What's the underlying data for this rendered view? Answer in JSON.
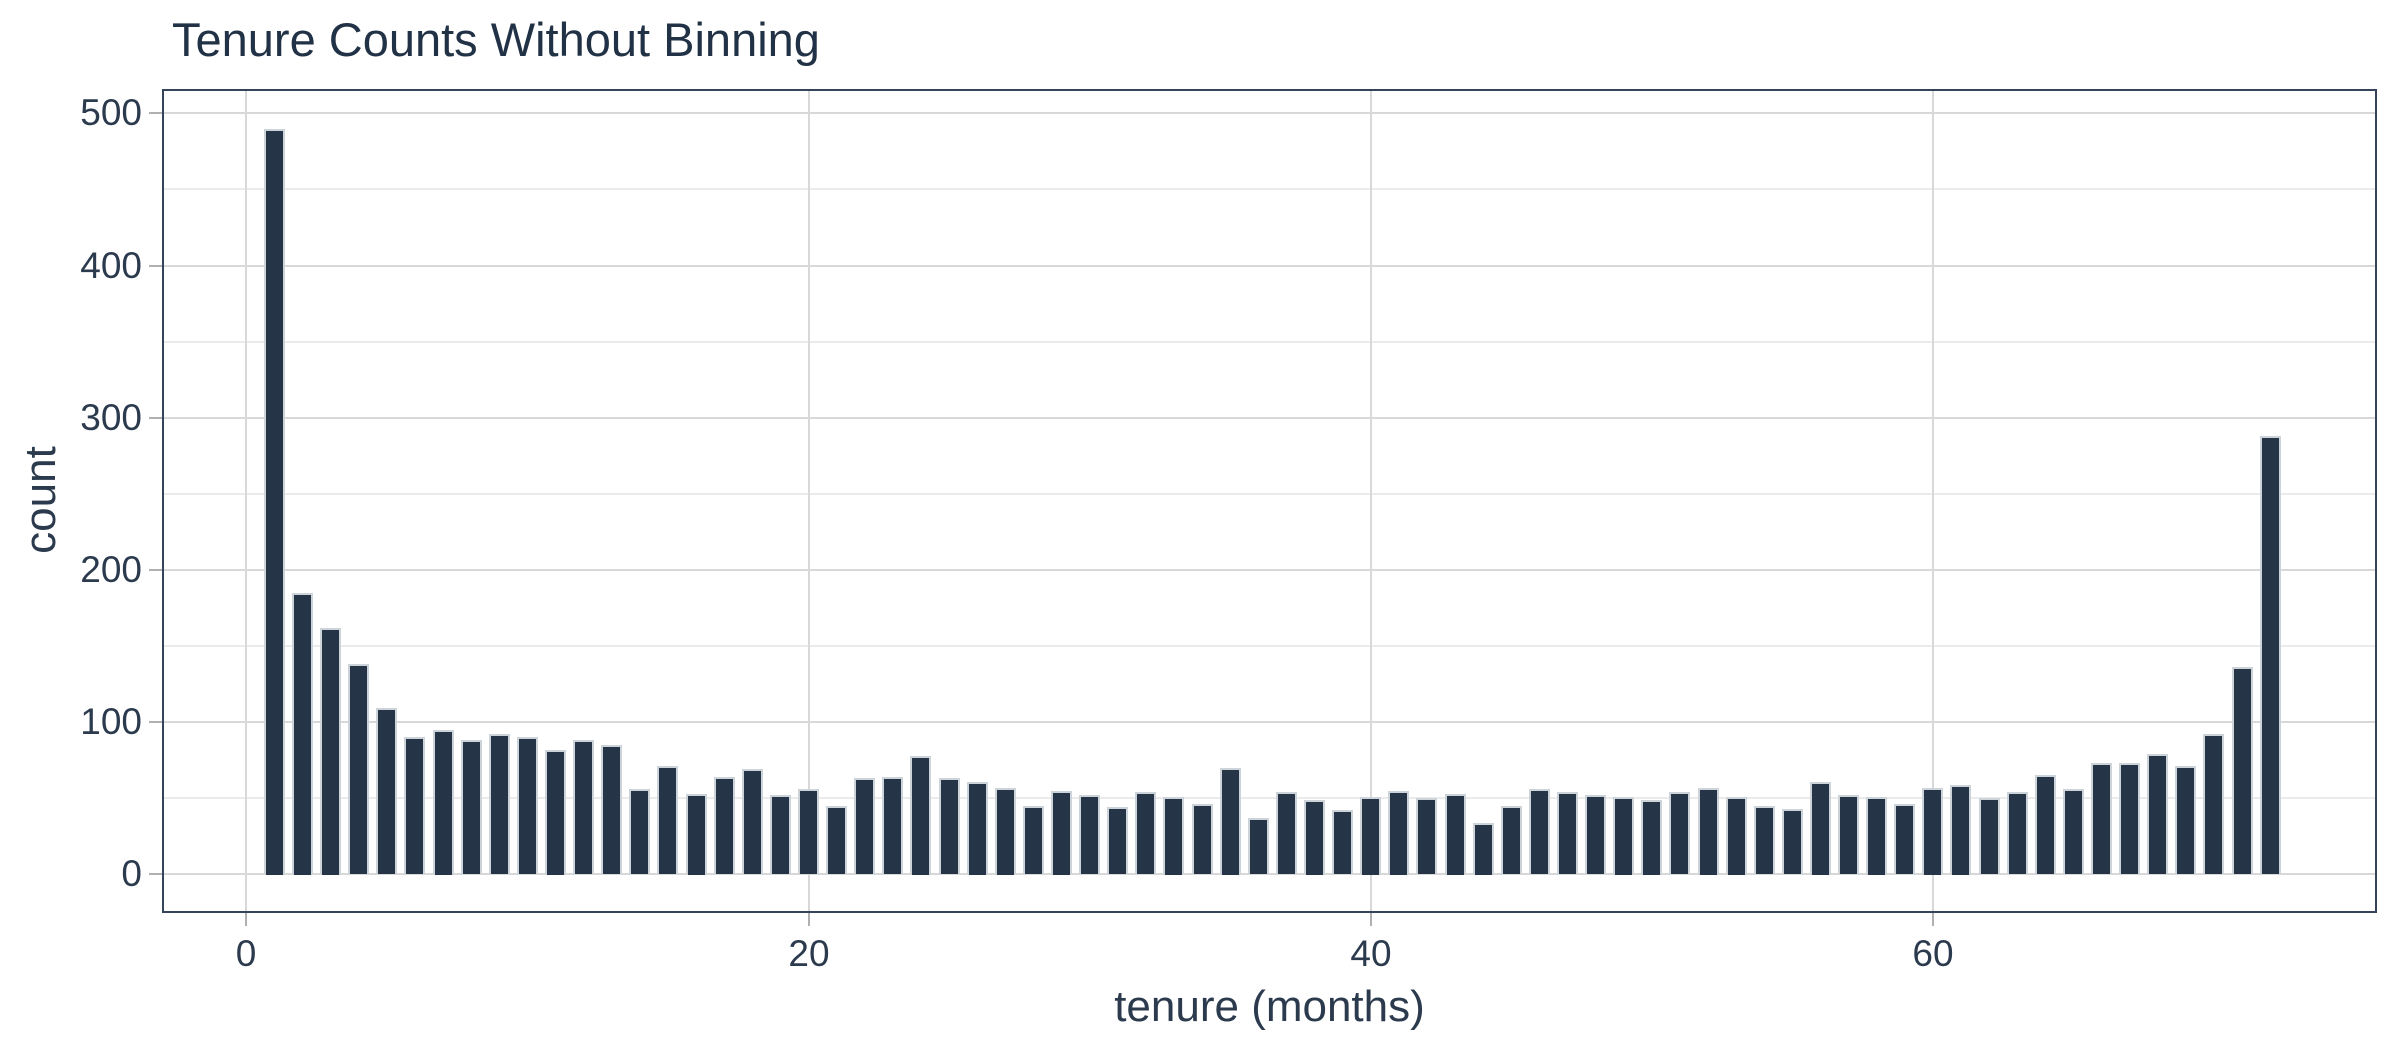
{
  "figure": {
    "background_color": "#ffffff",
    "panel_border_color": "#35445a",
    "grid_major_color": "#d8d8d8",
    "grid_minor_color": "#ebebeb",
    "tick_mark_color": "#b0b0b0",
    "text_color": "#2b3a4d",
    "title_color": "#223246"
  },
  "chart_data": {
    "type": "bar",
    "title": "Tenure Counts Without Binning",
    "xlabel": "tenure (months)",
    "ylabel": "count",
    "bar_color": "#253447",
    "bar_edge_color": "#ccd4da",
    "x": [
      1,
      2,
      3,
      4,
      5,
      6,
      7,
      8,
      9,
      10,
      11,
      12,
      13,
      14,
      15,
      16,
      17,
      18,
      19,
      20,
      21,
      22,
      23,
      24,
      25,
      26,
      27,
      28,
      29,
      30,
      31,
      32,
      33,
      34,
      35,
      36,
      37,
      38,
      39,
      40,
      41,
      42,
      43,
      44,
      45,
      46,
      47,
      48,
      49,
      50,
      51,
      52,
      53,
      54,
      55,
      56,
      57,
      58,
      59,
      60,
      61,
      62,
      63,
      64,
      65,
      66,
      67,
      68,
      69,
      70,
      71,
      72
    ],
    "values": [
      490,
      185,
      162,
      138,
      109,
      90,
      95,
      88,
      92,
      90,
      82,
      88,
      85,
      56,
      71,
      53,
      64,
      69,
      52,
      56,
      45,
      63,
      64,
      78,
      63,
      61,
      57,
      45,
      55,
      52,
      44,
      54,
      51,
      46,
      70,
      37,
      54,
      49,
      42,
      51,
      55,
      50,
      53,
      34,
      45,
      56,
      54,
      52,
      51,
      49,
      54,
      57,
      51,
      45,
      43,
      61,
      52,
      51,
      46,
      57,
      59,
      50,
      54,
      65,
      56,
      73,
      73,
      79,
      71,
      92,
      136,
      288
    ],
    "xlim": [
      -3.0,
      75.8
    ],
    "ylim": [
      -25.4,
      516.0
    ],
    "x_ticks": [
      0,
      20,
      40,
      60
    ],
    "x_tick_labels": [
      "0",
      "20",
      "40",
      "60"
    ],
    "y_ticks": [
      0,
      100,
      200,
      300,
      400,
      500
    ],
    "y_tick_labels": [
      "0",
      "100",
      "200",
      "300",
      "400",
      "500"
    ],
    "y_minor_ticks": [
      50,
      150,
      250,
      350,
      450
    ],
    "grid": true,
    "legend": "none"
  }
}
